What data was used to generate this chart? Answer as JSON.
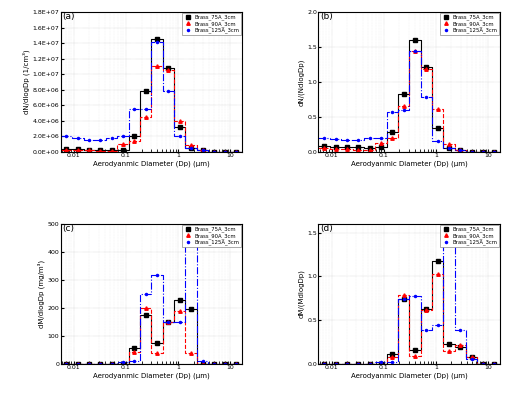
{
  "subplot_labels": [
    "(a)",
    "(b)",
    "(c)",
    "(d)"
  ],
  "legend_labels": [
    "Brass_75A_3cm",
    "Brass_90A_3cm",
    "Brass_125A_3cm"
  ],
  "colors": [
    "black",
    "red",
    "blue"
  ],
  "linestyles": [
    "-",
    "--",
    "-."
  ],
  "markers": [
    "s",
    "^",
    "."
  ],
  "markersize": [
    2.5,
    2.5,
    3.0
  ],
  "xlabel": "Aerodyanmic Diameter (Dp) (μm)",
  "bin_edges": [
    0.0056,
    0.0093,
    0.0154,
    0.0253,
    0.0418,
    0.069,
    0.114,
    0.188,
    0.31,
    0.511,
    0.843,
    1.39,
    2.3,
    3.8,
    6.25,
    10.3,
    17.0
  ],
  "plot_a": {
    "ylabel": "dN/dlogDp (1/cm³)",
    "ylim": [
      0,
      18000000.0
    ],
    "yticks": [
      0.0,
      2000000.0,
      4000000.0,
      6000000.0,
      8000000.0,
      10000000.0,
      12000000.0,
      14000000.0,
      16000000.0,
      18000000.0
    ],
    "ytick_labels": [
      "0.0E+00",
      "2.0E+06",
      "4.0E+06",
      "6.0E+06",
      "8.0E+06",
      "1.0E+07",
      "1.2E+07",
      "1.4E+07",
      "1.6E+07",
      "1.8E+07"
    ],
    "75A": [
      300000.0,
      280000.0,
      250000.0,
      200000.0,
      180000.0,
      250000.0,
      2000000.0,
      7800000.0,
      14500000.0,
      10800000.0,
      3200000.0,
      400000.0,
      200000.0,
      0,
      0,
      0
    ],
    "90A": [
      200000.0,
      150000.0,
      150000.0,
      100000.0,
      100000.0,
      1000000.0,
      1400000.0,
      4500000.0,
      11000000.0,
      10500000.0,
      4000000.0,
      800000.0,
      150000.0,
      0,
      0,
      0
    ],
    "125A": [
      2000000.0,
      1800000.0,
      1500000.0,
      1500000.0,
      1800000.0,
      2000000.0,
      5500000.0,
      5500000.0,
      14200000.0,
      7800000.0,
      2000000.0,
      400000.0,
      150000.0,
      0,
      0,
      0
    ]
  },
  "plot_b": {
    "ylabel": "dN/(NdlogDp)",
    "ylim": [
      0,
      2.0
    ],
    "yticks": [
      0.0,
      0.5,
      1.0,
      1.5,
      2.0
    ],
    "ytick_labels": [
      "0.0",
      "0.5",
      "1.0",
      "1.5",
      "2.0"
    ],
    "75A": [
      0.08,
      0.07,
      0.07,
      0.06,
      0.05,
      0.07,
      0.28,
      0.83,
      1.6,
      1.22,
      0.34,
      0.05,
      0.02,
      0,
      0,
      0
    ],
    "90A": [
      0.05,
      0.04,
      0.04,
      0.03,
      0.03,
      0.12,
      0.19,
      0.66,
      1.44,
      1.18,
      0.61,
      0.11,
      0.02,
      0,
      0,
      0
    ],
    "125A": [
      0.19,
      0.18,
      0.17,
      0.17,
      0.19,
      0.2,
      0.57,
      0.6,
      1.44,
      0.79,
      0.15,
      0.05,
      0.02,
      0,
      0,
      0
    ]
  },
  "plot_c": {
    "ylabel": "dM/dlogDp (mg/m³)",
    "ylim": [
      0,
      500
    ],
    "yticks": [
      0,
      100,
      200,
      300,
      400,
      500
    ],
    "ytick_labels": [
      "0",
      "100",
      "200",
      "300",
      "400",
      "500"
    ],
    "75A": [
      0,
      0,
      0,
      0,
      0,
      0,
      55,
      175,
      75,
      148,
      228,
      195,
      0,
      0,
      0,
      0
    ],
    "90A": [
      0,
      0,
      0,
      0,
      0,
      0,
      42,
      198,
      38,
      148,
      188,
      38,
      0,
      0,
      0,
      0
    ],
    "125A": [
      0,
      0,
      0,
      0,
      0,
      5,
      8,
      248,
      318,
      148,
      148,
      458,
      8,
      0,
      0,
      0
    ]
  },
  "plot_d": {
    "ylabel": "dM/(MdlogDp)",
    "ylim": [
      0,
      1.6
    ],
    "yticks": [
      0.0,
      0.5,
      1.0,
      1.5
    ],
    "ytick_labels": [
      "0.0",
      "0.5",
      "1.0",
      "1.5"
    ],
    "75A": [
      0,
      0,
      0,
      0,
      0,
      0,
      0.11,
      0.74,
      0.16,
      0.63,
      1.18,
      0.22,
      0.19,
      0.07,
      0,
      0
    ],
    "90A": [
      0,
      0,
      0,
      0,
      0,
      0,
      0.08,
      0.79,
      0.09,
      0.61,
      1.03,
      0.15,
      0.21,
      0.07,
      0,
      0
    ],
    "125A": [
      0,
      0,
      0,
      0,
      0,
      0.02,
      0.02,
      0.74,
      0.77,
      0.39,
      0.44,
      1.38,
      0.38,
      0.05,
      0,
      0
    ]
  }
}
